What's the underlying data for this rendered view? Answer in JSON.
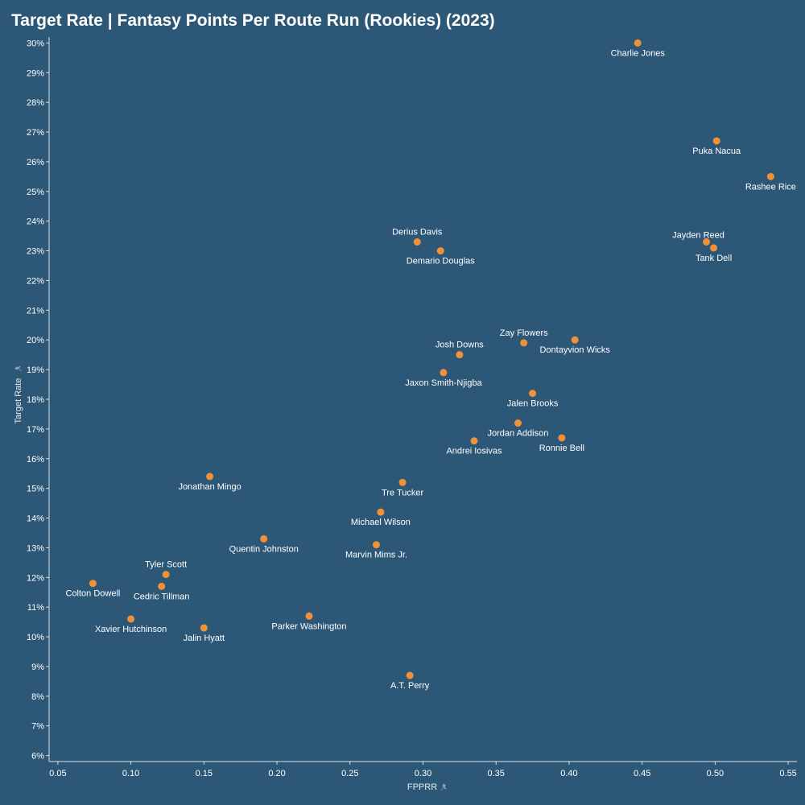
{
  "chart_data": {
    "type": "scatter",
    "title": "Target Rate | Fantasy Points Per Route Run (Rookies) (2023)",
    "xlabel": "FPPRR",
    "ylabel": "Target Rate",
    "xlim": [
      0.044,
      0.556
    ],
    "ylim": [
      0.058,
      0.302
    ],
    "x_ticks": [
      0.05,
      0.1,
      0.15,
      0.2,
      0.25,
      0.3,
      0.35,
      0.4,
      0.45,
      0.5,
      0.55
    ],
    "x_tick_labels": [
      "0.05",
      "0.10",
      "0.15",
      "0.20",
      "0.25",
      "0.30",
      "0.35",
      "0.40",
      "0.45",
      "0.50",
      "0.55"
    ],
    "y_ticks": [
      0.06,
      0.07,
      0.08,
      0.09,
      0.1,
      0.11,
      0.12,
      0.13,
      0.14,
      0.15,
      0.16,
      0.17,
      0.18,
      0.19,
      0.2,
      0.21,
      0.22,
      0.23,
      0.24,
      0.25,
      0.26,
      0.27,
      0.28,
      0.29,
      0.3
    ],
    "y_tick_labels": [
      "6%",
      "7%",
      "8%",
      "9%",
      "10%",
      "11%",
      "12%",
      "13%",
      "14%",
      "15%",
      "16%",
      "17%",
      "18%",
      "19%",
      "20%",
      "21%",
      "22%",
      "23%",
      "24%",
      "25%",
      "26%",
      "27%",
      "28%",
      "29%",
      "30%"
    ],
    "grid": false,
    "point_color": "#f0913a",
    "background_color": "#2c5777",
    "points": [
      {
        "name": "Charlie Jones",
        "x": 0.447,
        "y": 0.3,
        "label_pos": "below"
      },
      {
        "name": "Puka Nacua",
        "x": 0.501,
        "y": 0.267,
        "label_pos": "below"
      },
      {
        "name": "Rashee Rice",
        "x": 0.538,
        "y": 0.255,
        "label_pos": "below"
      },
      {
        "name": "Jayden Reed",
        "x": 0.494,
        "y": 0.233,
        "label_pos": "above-left"
      },
      {
        "name": "Tank Dell",
        "x": 0.499,
        "y": 0.231,
        "label_pos": "below"
      },
      {
        "name": "Derius Davis",
        "x": 0.296,
        "y": 0.233,
        "label_pos": "above"
      },
      {
        "name": "Demario Douglas",
        "x": 0.312,
        "y": 0.23,
        "label_pos": "below"
      },
      {
        "name": "Zay Flowers",
        "x": 0.369,
        "y": 0.199,
        "label_pos": "above"
      },
      {
        "name": "Dontayvion Wicks",
        "x": 0.404,
        "y": 0.2,
        "label_pos": "below"
      },
      {
        "name": "Josh Downs",
        "x": 0.325,
        "y": 0.195,
        "label_pos": "above"
      },
      {
        "name": "Jaxon Smith-Njigba",
        "x": 0.314,
        "y": 0.189,
        "label_pos": "below"
      },
      {
        "name": "Jalen Brooks",
        "x": 0.375,
        "y": 0.182,
        "label_pos": "below"
      },
      {
        "name": "Jordan Addison",
        "x": 0.365,
        "y": 0.172,
        "label_pos": "below"
      },
      {
        "name": "Andrei Iosivas",
        "x": 0.335,
        "y": 0.166,
        "label_pos": "below"
      },
      {
        "name": "Ronnie Bell",
        "x": 0.395,
        "y": 0.167,
        "label_pos": "below"
      },
      {
        "name": "Tre Tucker",
        "x": 0.286,
        "y": 0.152,
        "label_pos": "below"
      },
      {
        "name": "Michael Wilson",
        "x": 0.271,
        "y": 0.142,
        "label_pos": "below"
      },
      {
        "name": "Marvin Mims Jr.",
        "x": 0.268,
        "y": 0.131,
        "label_pos": "below"
      },
      {
        "name": "Jonathan Mingo",
        "x": 0.154,
        "y": 0.154,
        "label_pos": "below"
      },
      {
        "name": "Quentin Johnston",
        "x": 0.191,
        "y": 0.133,
        "label_pos": "below"
      },
      {
        "name": "Tyler Scott",
        "x": 0.124,
        "y": 0.121,
        "label_pos": "above"
      },
      {
        "name": "Cedric Tillman",
        "x": 0.121,
        "y": 0.117,
        "label_pos": "below"
      },
      {
        "name": "Colton Dowell",
        "x": 0.074,
        "y": 0.118,
        "label_pos": "below"
      },
      {
        "name": "Xavier Hutchinson",
        "x": 0.1,
        "y": 0.106,
        "label_pos": "below"
      },
      {
        "name": "Jalin Hyatt",
        "x": 0.15,
        "y": 0.103,
        "label_pos": "below"
      },
      {
        "name": "Parker Washington",
        "x": 0.222,
        "y": 0.107,
        "label_pos": "below"
      },
      {
        "name": "A.T. Perry",
        "x": 0.291,
        "y": 0.087,
        "label_pos": "below"
      }
    ]
  }
}
